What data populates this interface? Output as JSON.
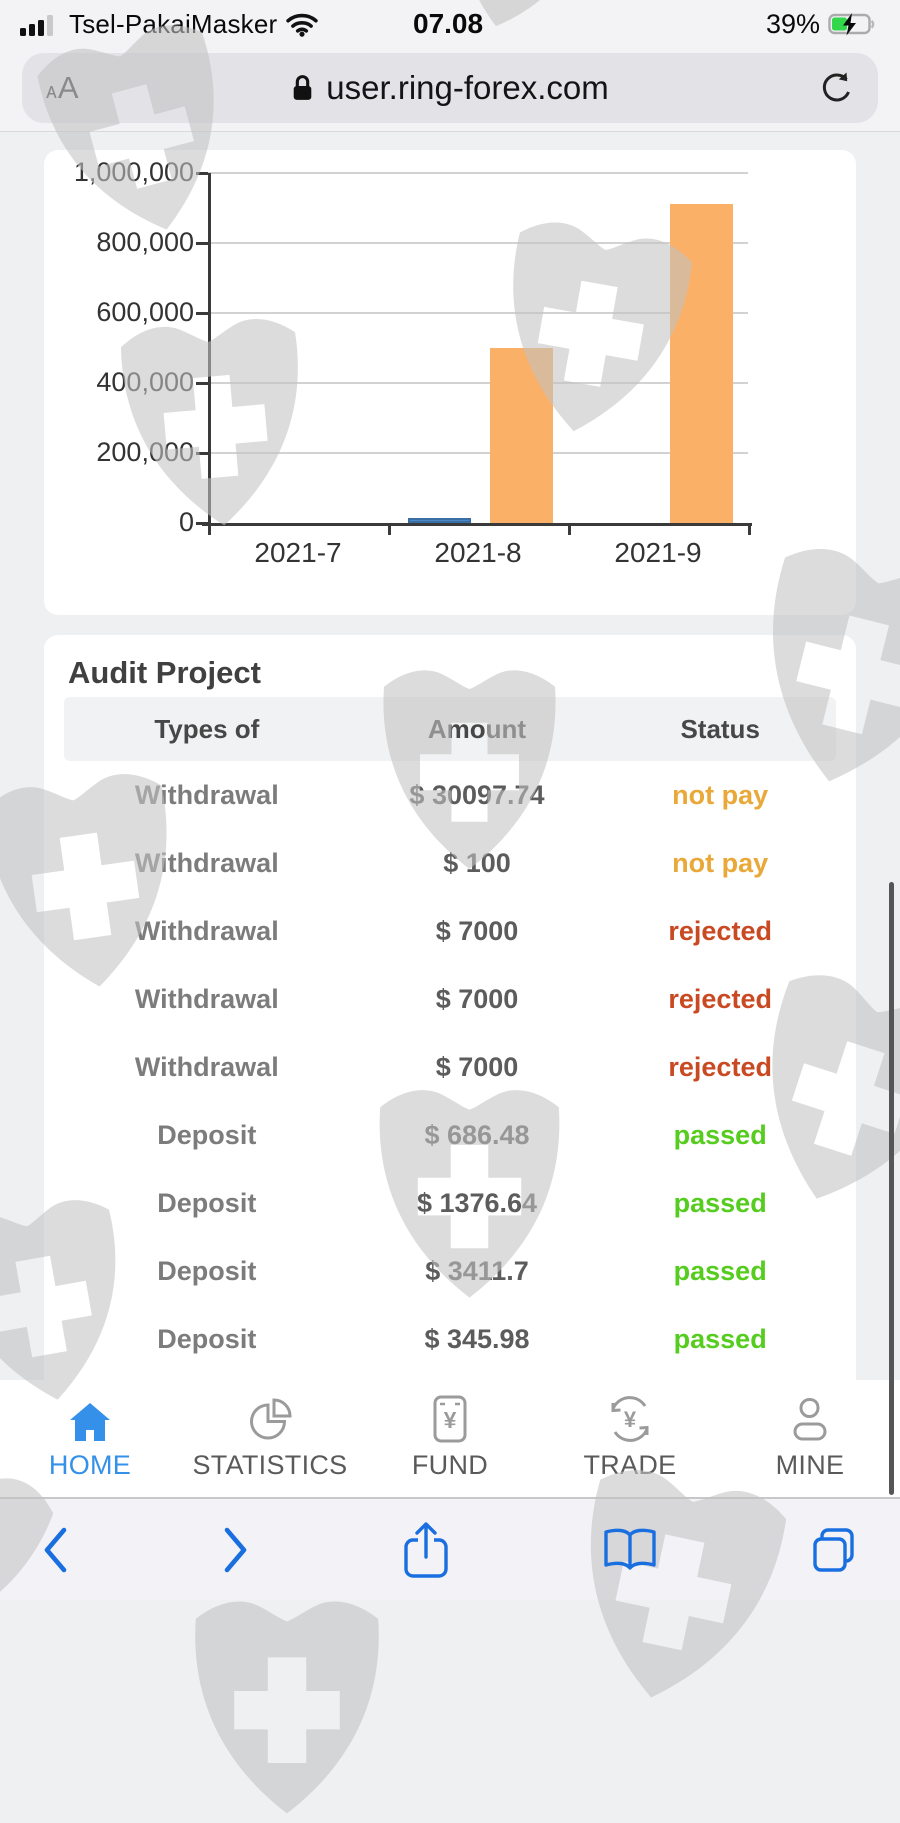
{
  "status_bar": {
    "carrier": "Tsel-PakaiMasker",
    "time": "07.08",
    "battery_percent": "39%",
    "icons": [
      "signal-icon",
      "wifi-icon",
      "battery-charging-icon"
    ]
  },
  "url_bar": {
    "text_size_label": "AA",
    "domain": "user.ring-forex.com",
    "icons": [
      "lock-icon",
      "reload-icon"
    ]
  },
  "chart_data": {
    "type": "bar",
    "categories": [
      "2021-7",
      "2021-8",
      "2021-9"
    ],
    "series": [
      {
        "name": "series-blue",
        "color": "#4E87C5",
        "border": "#3A6EA5",
        "values": [
          0,
          15000,
          0
        ]
      },
      {
        "name": "series-orange",
        "color": "#FAB067",
        "border": "",
        "values": [
          0,
          500000,
          910000
        ]
      }
    ],
    "title": "",
    "xlabel": "",
    "ylabel": "",
    "ylim": [
      0,
      1000000
    ],
    "yticks": [
      0,
      200000,
      400000,
      600000,
      800000,
      1000000
    ],
    "ytick_labels": [
      "0",
      "200,000",
      "400,000",
      "600,000",
      "800,000",
      "1,000,000"
    ],
    "grid": true,
    "legend": "none"
  },
  "audit_table": {
    "title": "Audit Project",
    "columns": [
      "Types of",
      "Amount",
      "Status"
    ],
    "status_colors": {
      "not pay": "#E9A837",
      "rejected": "#C94A22",
      "passed": "#55CC1E"
    },
    "rows": [
      {
        "type": "Withdrawal",
        "amount": "$ 30097.74",
        "status": "not pay"
      },
      {
        "type": "Withdrawal",
        "amount": "$ 100",
        "status": "not pay"
      },
      {
        "type": "Withdrawal",
        "amount": "$ 7000",
        "status": "rejected"
      },
      {
        "type": "Withdrawal",
        "amount": "$ 7000",
        "status": "rejected"
      },
      {
        "type": "Withdrawal",
        "amount": "$ 7000",
        "status": "rejected"
      },
      {
        "type": "Deposit",
        "amount": "$ 686.48",
        "status": "passed"
      },
      {
        "type": "Deposit",
        "amount": "$ 1376.64",
        "status": "passed"
      },
      {
        "type": "Deposit",
        "amount": "$ 3411.7",
        "status": "passed"
      },
      {
        "type": "Deposit",
        "amount": "$ 345.98",
        "status": "passed"
      }
    ]
  },
  "site_nav": {
    "active_color": "#3490E8",
    "items": [
      {
        "label": "HOME",
        "icon": "home-icon",
        "active": true
      },
      {
        "label": "STATISTICS",
        "icon": "pie-chart-icon",
        "active": false
      },
      {
        "label": "FUND",
        "icon": "yen-bill-icon",
        "active": false
      },
      {
        "label": "TRADE",
        "icon": "yen-exchange-icon",
        "active": false
      },
      {
        "label": "MINE",
        "icon": "person-icon",
        "active": false
      }
    ]
  },
  "safari_toolbar": {
    "accent_color": "#1A6FE0",
    "icons": [
      "back-icon",
      "forward-icon",
      "share-icon",
      "bookmarks-icon",
      "tabs-icon"
    ]
  },
  "watermark": {
    "icon": "shield-cross-watermark-icon",
    "color": "#c3c3c3"
  }
}
